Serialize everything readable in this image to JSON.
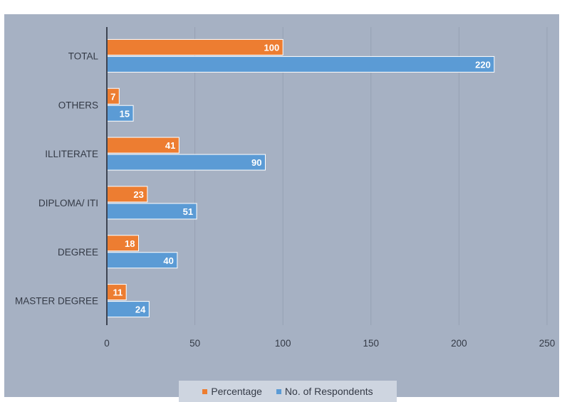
{
  "chart_data": {
    "type": "bar",
    "orientation": "horizontal",
    "categories": [
      "TOTAL",
      "OTHERS",
      "ILLITERATE",
      "DIPLOMA/ ITI",
      "DEGREE",
      "MASTER DEGREE"
    ],
    "series": [
      {
        "name": "Percentage",
        "color": "#ed7d31",
        "values": [
          100,
          7,
          41,
          23,
          18,
          11
        ]
      },
      {
        "name": "No. of Respondents",
        "color": "#5b9bd5",
        "values": [
          220,
          15,
          90,
          51,
          40,
          24
        ]
      }
    ],
    "xlim": [
      0,
      250
    ],
    "xticks": [
      "0",
      "50",
      "100",
      "150",
      "200",
      "250"
    ],
    "grid": true,
    "legend_position": "bottom",
    "data_labels": true
  }
}
